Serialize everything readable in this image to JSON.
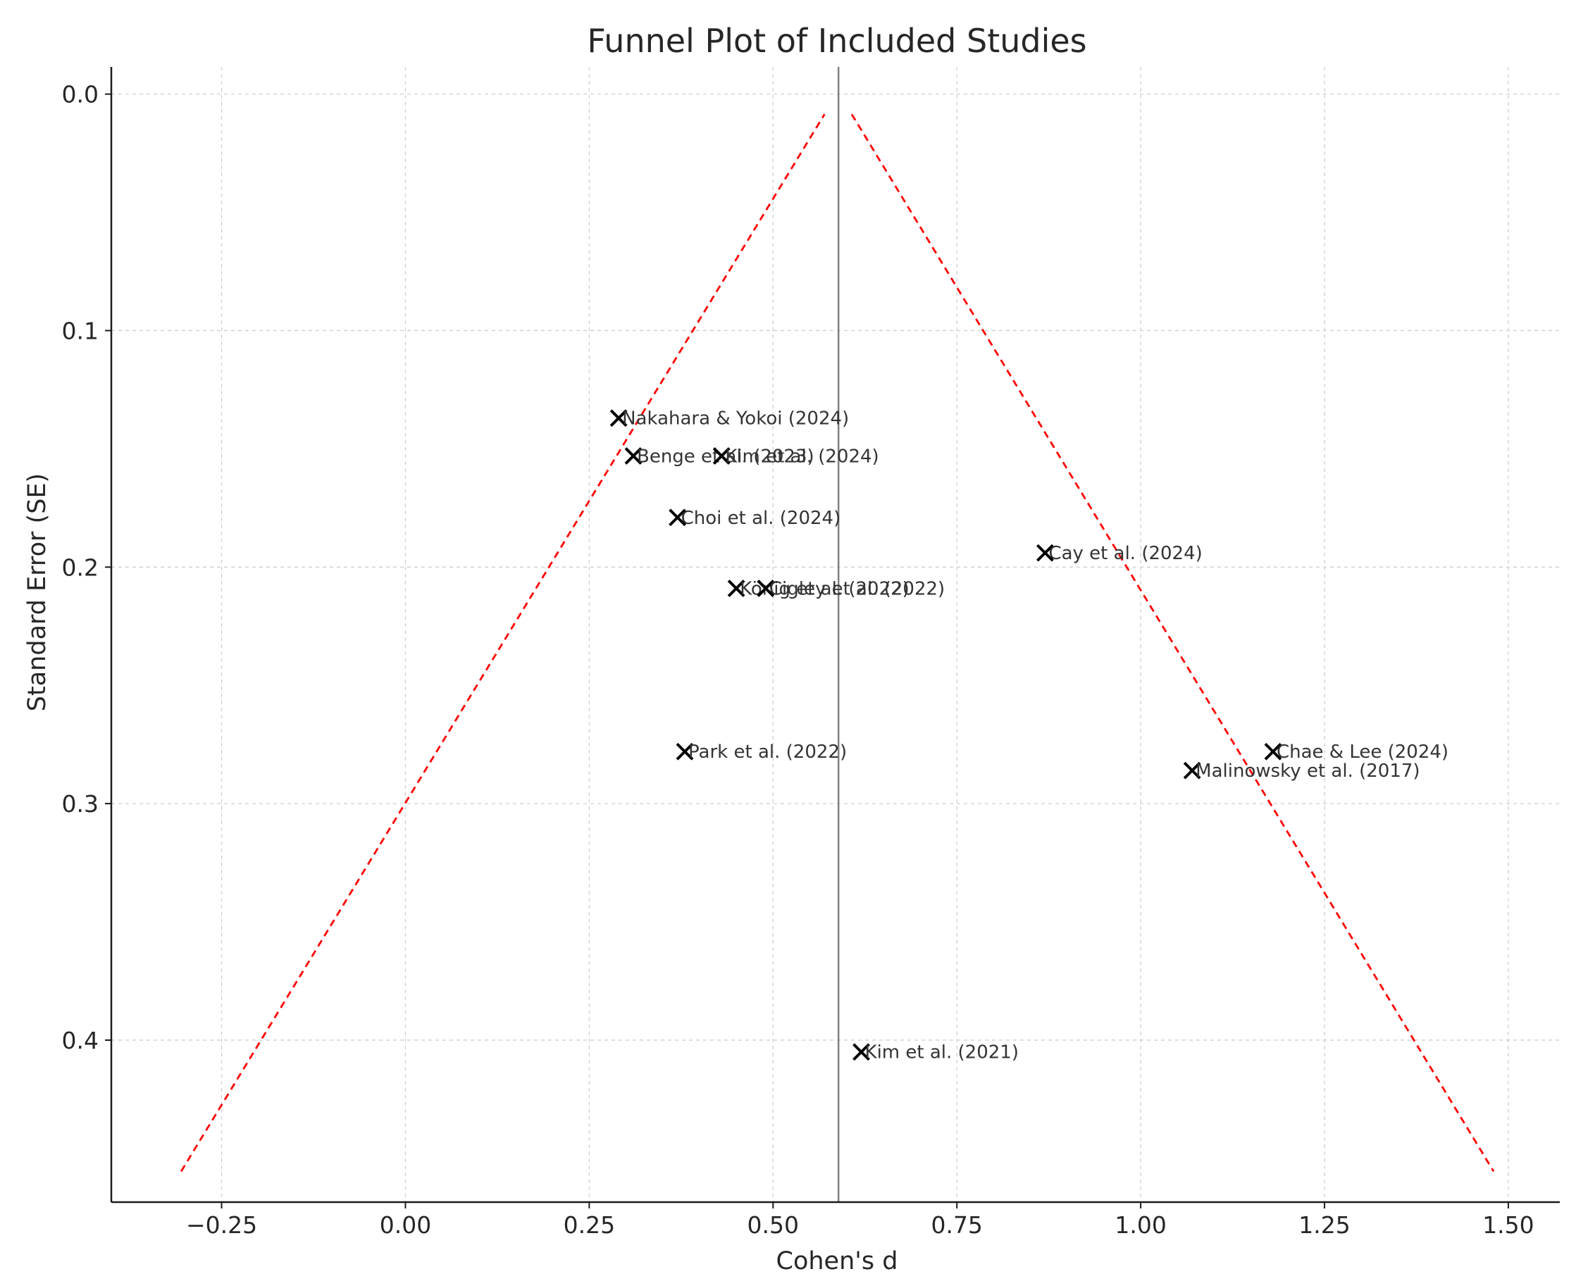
{
  "chart_data": {
    "type": "scatter",
    "title": "Funnel Plot of Included Studies",
    "xlabel": "Cohen's d",
    "ylabel": "Standard Error (SE)",
    "xlim": [
      -0.4,
      1.57
    ],
    "ylim": [
      0.4685,
      -0.0115
    ],
    "y_inverted": true,
    "x_ticks": [
      -0.25,
      0.0,
      0.25,
      0.5,
      0.75,
      1.0,
      1.25,
      1.5
    ],
    "x_tick_labels": [
      "−0.25",
      "0.00",
      "0.25",
      "0.50",
      "0.75",
      "1.00",
      "1.25",
      "1.50"
    ],
    "y_ticks": [
      0.0,
      0.1,
      0.2,
      0.3,
      0.4
    ],
    "y_tick_labels": [
      "0.0",
      "0.1",
      "0.2",
      "0.3",
      "0.4"
    ],
    "grid": true,
    "marker": "x",
    "points": [
      {
        "label": "Nakahara & Yokoi (2024)",
        "x": 0.29,
        "y": 0.137
      },
      {
        "label": "Benge et al. (2023)",
        "x": 0.31,
        "y": 0.153
      },
      {
        "label": "Kim et al. (2024)",
        "x": 0.43,
        "y": 0.153
      },
      {
        "label": "Choi et al. (2024)",
        "x": 0.37,
        "y": 0.179
      },
      {
        "label": "König et al. (2022)",
        "x": 0.45,
        "y": 0.209
      },
      {
        "label": "Cigley et al. (2022)",
        "x": 0.49,
        "y": 0.209
      },
      {
        "label": "Cay et al. (2024)",
        "x": 0.87,
        "y": 0.194
      },
      {
        "label": "Park et al. (2022)",
        "x": 0.38,
        "y": 0.278
      },
      {
        "label": "Chae & Lee (2024)",
        "x": 1.18,
        "y": 0.278
      },
      {
        "label": "Malinowsky et al. (2017)",
        "x": 1.07,
        "y": 0.286
      },
      {
        "label": "Kim et al. (2021)",
        "x": 0.62,
        "y": 0.405
      }
    ],
    "pooled_effect": 0.589,
    "funnel_lines": [
      {
        "x": [
          -0.305,
          0.57
        ],
        "y": [
          0.4555,
          0.0085
        ]
      },
      {
        "x": [
          0.607,
          1.48
        ],
        "y": [
          0.0085,
          0.4555
        ]
      }
    ],
    "colors": {
      "funnel": "#ff0000",
      "pooled": "#808080",
      "marker": "#000000"
    }
  }
}
